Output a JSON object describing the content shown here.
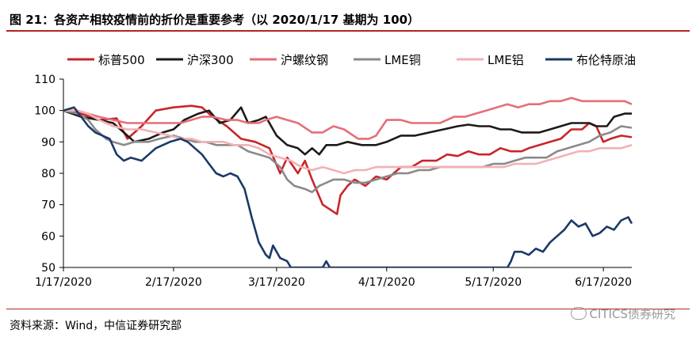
{
  "header": {
    "title": "图 21：各资产相较疫情前的折价是重要参考（以 2020/1/17 基期为 100）"
  },
  "footer": {
    "source": "资料来源：Wind，中信证券研究部",
    "watermark": "CITICS债券研究"
  },
  "chart_data": {
    "type": "line",
    "title": "",
    "xlabel": "",
    "ylabel": "",
    "ylim": [
      50,
      110
    ],
    "yticks": [
      50,
      60,
      70,
      80,
      90,
      100,
      110
    ],
    "xlim": [
      0,
      160
    ],
    "xticks": [
      {
        "label": "1/17/2020",
        "x": 0
      },
      {
        "label": "2/17/2020",
        "x": 31
      },
      {
        "label": "3/17/2020",
        "x": 60
      },
      {
        "label": "4/17/2020",
        "x": 91
      },
      {
        "label": "5/17/2020",
        "x": 121
      },
      {
        "label": "6/17/2020",
        "x": 152
      }
    ],
    "grid": false,
    "legend_position": "top",
    "series": [
      {
        "name": "标普500",
        "color": "#c8262b",
        "points": [
          [
            0,
            100
          ],
          [
            5,
            99
          ],
          [
            10,
            97
          ],
          [
            15,
            97.5
          ],
          [
            18,
            91
          ],
          [
            22,
            95
          ],
          [
            26,
            100
          ],
          [
            31,
            101
          ],
          [
            36,
            101.5
          ],
          [
            39,
            101
          ],
          [
            42,
            98
          ],
          [
            46,
            95
          ],
          [
            50,
            91
          ],
          [
            54,
            90
          ],
          [
            58,
            88
          ],
          [
            61,
            80
          ],
          [
            63,
            85
          ],
          [
            66,
            80
          ],
          [
            68,
            84
          ],
          [
            70,
            78
          ],
          [
            73,
            70
          ],
          [
            75,
            68.5
          ],
          [
            77,
            67
          ],
          [
            78,
            73
          ],
          [
            80,
            76
          ],
          [
            82,
            78
          ],
          [
            85,
            76
          ],
          [
            88,
            79
          ],
          [
            91,
            78
          ],
          [
            95,
            82
          ],
          [
            98,
            82
          ],
          [
            101,
            84
          ],
          [
            105,
            84
          ],
          [
            108,
            86
          ],
          [
            111,
            85.5
          ],
          [
            114,
            87
          ],
          [
            117,
            86
          ],
          [
            120,
            86
          ],
          [
            123,
            88
          ],
          [
            126,
            87
          ],
          [
            129,
            87
          ],
          [
            131,
            88
          ],
          [
            134,
            89
          ],
          [
            137,
            90
          ],
          [
            140,
            91
          ],
          [
            143,
            94
          ],
          [
            146,
            94
          ],
          [
            148,
            96
          ],
          [
            150,
            95
          ],
          [
            152,
            90
          ],
          [
            154,
            91
          ],
          [
            157,
            92
          ],
          [
            160,
            91.5
          ]
        ]
      },
      {
        "name": "沪深300",
        "color": "#1f1a17",
        "points": [
          [
            0,
            100
          ],
          [
            5,
            98
          ],
          [
            10,
            97
          ],
          [
            14,
            96
          ],
          [
            17,
            93
          ],
          [
            20,
            90
          ],
          [
            24,
            91
          ],
          [
            28,
            93
          ],
          [
            31,
            94
          ],
          [
            34,
            97
          ],
          [
            36,
            98
          ],
          [
            38,
            99
          ],
          [
            41,
            100
          ],
          [
            44,
            96
          ],
          [
            47,
            97
          ],
          [
            50,
            101
          ],
          [
            52,
            96
          ],
          [
            55,
            97
          ],
          [
            57,
            98
          ],
          [
            60,
            92
          ],
          [
            63,
            89
          ],
          [
            66,
            88
          ],
          [
            68,
            86
          ],
          [
            70,
            88
          ],
          [
            72,
            86
          ],
          [
            74,
            89
          ],
          [
            77,
            89
          ],
          [
            80,
            90
          ],
          [
            84,
            89
          ],
          [
            88,
            89
          ],
          [
            91,
            90
          ],
          [
            95,
            92
          ],
          [
            99,
            92
          ],
          [
            103,
            93
          ],
          [
            107,
            94
          ],
          [
            111,
            95
          ],
          [
            114,
            95.5
          ],
          [
            117,
            95
          ],
          [
            120,
            95
          ],
          [
            123,
            94
          ],
          [
            126,
            94
          ],
          [
            129,
            93
          ],
          [
            131,
            93
          ],
          [
            134,
            93
          ],
          [
            137,
            94
          ],
          [
            140,
            95
          ],
          [
            143,
            96
          ],
          [
            146,
            96
          ],
          [
            148,
            96
          ],
          [
            150,
            95
          ],
          [
            153,
            95
          ],
          [
            155,
            98
          ],
          [
            158,
            99
          ],
          [
            160,
            99
          ]
        ]
      },
      {
        "name": "沪螺纹钢",
        "color": "#e46f7a",
        "points": [
          [
            0,
            100
          ],
          [
            4,
            100
          ],
          [
            7,
            99
          ],
          [
            10,
            98
          ],
          [
            14,
            97
          ],
          [
            18,
            96
          ],
          [
            22,
            96
          ],
          [
            26,
            96
          ],
          [
            30,
            96
          ],
          [
            33,
            96
          ],
          [
            36,
            97
          ],
          [
            39,
            98
          ],
          [
            42,
            98
          ],
          [
            46,
            97
          ],
          [
            49,
            97
          ],
          [
            52,
            96
          ],
          [
            55,
            96
          ],
          [
            57,
            97
          ],
          [
            60,
            98
          ],
          [
            63,
            97
          ],
          [
            66,
            96
          ],
          [
            70,
            93
          ],
          [
            73,
            93
          ],
          [
            76,
            95
          ],
          [
            79,
            94
          ],
          [
            83,
            91
          ],
          [
            86,
            91
          ],
          [
            88,
            92
          ],
          [
            91,
            97
          ],
          [
            95,
            97
          ],
          [
            98,
            96
          ],
          [
            102,
            96
          ],
          [
            106,
            96
          ],
          [
            110,
            98
          ],
          [
            113,
            98
          ],
          [
            116,
            99
          ],
          [
            119,
            100
          ],
          [
            122,
            101
          ],
          [
            125,
            102
          ],
          [
            128,
            101
          ],
          [
            131,
            102
          ],
          [
            134,
            102
          ],
          [
            137,
            103
          ],
          [
            140,
            103
          ],
          [
            143,
            104
          ],
          [
            146,
            103
          ],
          [
            149,
            103
          ],
          [
            152,
            103
          ],
          [
            155,
            103
          ],
          [
            158,
            103
          ],
          [
            160,
            102
          ]
        ]
      },
      {
        "name": "LME铜",
        "color": "#8a8a8a",
        "points": [
          [
            0,
            100
          ],
          [
            4,
            99
          ],
          [
            7,
            97
          ],
          [
            9,
            94
          ],
          [
            12,
            91
          ],
          [
            14,
            90
          ],
          [
            17,
            89
          ],
          [
            20,
            90
          ],
          [
            24,
            90
          ],
          [
            27,
            91
          ],
          [
            31,
            92
          ],
          [
            34,
            91
          ],
          [
            37,
            90
          ],
          [
            40,
            90
          ],
          [
            43,
            89
          ],
          [
            46,
            89
          ],
          [
            49,
            89
          ],
          [
            52,
            87
          ],
          [
            55,
            86
          ],
          [
            58,
            85
          ],
          [
            61,
            82
          ],
          [
            63,
            78
          ],
          [
            65,
            76
          ],
          [
            68,
            75
          ],
          [
            70,
            74
          ],
          [
            72,
            76
          ],
          [
            74,
            77
          ],
          [
            76,
            78
          ],
          [
            79,
            78
          ],
          [
            82,
            77
          ],
          [
            85,
            77
          ],
          [
            88,
            78
          ],
          [
            91,
            79
          ],
          [
            94,
            80
          ],
          [
            97,
            80
          ],
          [
            100,
            81
          ],
          [
            103,
            81
          ],
          [
            106,
            82
          ],
          [
            109,
            82
          ],
          [
            112,
            82
          ],
          [
            115,
            82
          ],
          [
            118,
            82
          ],
          [
            121,
            83
          ],
          [
            124,
            83
          ],
          [
            127,
            84
          ],
          [
            130,
            85
          ],
          [
            133,
            85
          ],
          [
            136,
            85
          ],
          [
            139,
            87
          ],
          [
            142,
            88
          ],
          [
            145,
            89
          ],
          [
            148,
            90
          ],
          [
            151,
            92
          ],
          [
            154,
            93
          ],
          [
            157,
            95
          ],
          [
            160,
            94.5
          ]
        ]
      },
      {
        "name": "LME铝",
        "color": "#f2b1b4",
        "points": [
          [
            0,
            100
          ],
          [
            4,
            100
          ],
          [
            7,
            99
          ],
          [
            10,
            97
          ],
          [
            14,
            95
          ],
          [
            18,
            94
          ],
          [
            22,
            94
          ],
          [
            26,
            93
          ],
          [
            30,
            92
          ],
          [
            33,
            91
          ],
          [
            36,
            91
          ],
          [
            39,
            90
          ],
          [
            42,
            90
          ],
          [
            45,
            90
          ],
          [
            48,
            89
          ],
          [
            52,
            89
          ],
          [
            55,
            88
          ],
          [
            58,
            86
          ],
          [
            61,
            85
          ],
          [
            64,
            84
          ],
          [
            67,
            82
          ],
          [
            70,
            81
          ],
          [
            73,
            82
          ],
          [
            76,
            81
          ],
          [
            79,
            80
          ],
          [
            82,
            81
          ],
          [
            85,
            81
          ],
          [
            88,
            82
          ],
          [
            91,
            82
          ],
          [
            94,
            82
          ],
          [
            97,
            82
          ],
          [
            100,
            82
          ],
          [
            103,
            82
          ],
          [
            106,
            82
          ],
          [
            109,
            82
          ],
          [
            112,
            82
          ],
          [
            115,
            82
          ],
          [
            118,
            82
          ],
          [
            121,
            82
          ],
          [
            124,
            82
          ],
          [
            127,
            83
          ],
          [
            130,
            83
          ],
          [
            133,
            83
          ],
          [
            136,
            84
          ],
          [
            139,
            85
          ],
          [
            142,
            86
          ],
          [
            145,
            87
          ],
          [
            148,
            87
          ],
          [
            151,
            88
          ],
          [
            154,
            88
          ],
          [
            157,
            88
          ],
          [
            160,
            89
          ]
        ]
      },
      {
        "name": "布伦特原油",
        "color": "#1b3a66",
        "points": [
          [
            0,
            100
          ],
          [
            3,
            101
          ],
          [
            5,
            98
          ],
          [
            7,
            95
          ],
          [
            9,
            93
          ],
          [
            11,
            92
          ],
          [
            13,
            91
          ],
          [
            15,
            86
          ],
          [
            17,
            84
          ],
          [
            19,
            85
          ],
          [
            22,
            84
          ],
          [
            24,
            86
          ],
          [
            26,
            88
          ],
          [
            28,
            89
          ],
          [
            30,
            90
          ],
          [
            33,
            91
          ],
          [
            35,
            90
          ],
          [
            37,
            88
          ],
          [
            39,
            86
          ],
          [
            41,
            83
          ],
          [
            43,
            80
          ],
          [
            45,
            79
          ],
          [
            47,
            80
          ],
          [
            49,
            79
          ],
          [
            51,
            75
          ],
          [
            53,
            66
          ],
          [
            55,
            58
          ],
          [
            57,
            54
          ],
          [
            58,
            53
          ],
          [
            59,
            57
          ],
          [
            61,
            53
          ],
          [
            63,
            52
          ],
          [
            64,
            50
          ],
          [
            73,
            50
          ],
          [
            74,
            52
          ],
          [
            75,
            50
          ],
          [
            125,
            50
          ],
          [
            126,
            52
          ],
          [
            127,
            55
          ],
          [
            129,
            55
          ],
          [
            131,
            54
          ],
          [
            133,
            56
          ],
          [
            135,
            55
          ],
          [
            137,
            58
          ],
          [
            139,
            60
          ],
          [
            141,
            62
          ],
          [
            143,
            65
          ],
          [
            145,
            63
          ],
          [
            147,
            64
          ],
          [
            149,
            60
          ],
          [
            151,
            61
          ],
          [
            153,
            63
          ],
          [
            155,
            62
          ],
          [
            157,
            65
          ],
          [
            159,
            66
          ],
          [
            160,
            64
          ]
        ]
      }
    ]
  }
}
